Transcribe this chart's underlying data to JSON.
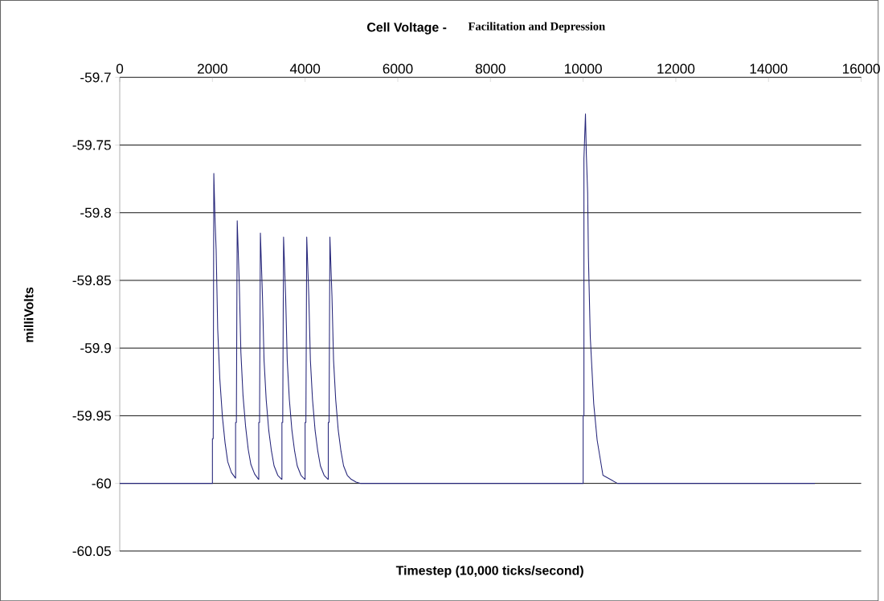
{
  "chart_data": {
    "type": "line",
    "title": "Cell Voltage -",
    "subtitle": "Facilitation and Depression",
    "xlabel": "Timestep (10,000 ticks/second)",
    "ylabel": "milliVolts",
    "xlim": [
      0,
      16000
    ],
    "xticks": [
      0,
      2000,
      4000,
      6000,
      8000,
      10000,
      12000,
      14000,
      16000
    ],
    "ylim": [
      -60.05,
      -59.7
    ],
    "yticks": [
      -60.05,
      -60,
      -59.95,
      -59.9,
      -59.85,
      -59.8,
      -59.75,
      -59.7
    ],
    "grid": "y",
    "marker": "none",
    "line_style": "solid",
    "series": [
      {
        "color": "#26267a",
        "x": [
          0,
          2000,
          2000,
          2017,
          2030,
          2057,
          2080,
          2114,
          2160,
          2216,
          2273,
          2330,
          2410,
          2495,
          2500,
          2500,
          2517,
          2535,
          2580,
          2614,
          2660,
          2716,
          2773,
          2830,
          2910,
          2995,
          3000,
          3000,
          3017,
          3035,
          3080,
          3114,
          3160,
          3216,
          3273,
          3330,
          3410,
          3495,
          3500,
          3500,
          3517,
          3535,
          3580,
          3614,
          3660,
          3716,
          3773,
          3830,
          3910,
          3995,
          4000,
          4000,
          4017,
          4035,
          4080,
          4114,
          4160,
          4216,
          4273,
          4330,
          4410,
          4495,
          4500,
          4500,
          4517,
          4535,
          4580,
          4614,
          4660,
          4716,
          4773,
          4830,
          4910,
          4995,
          5100,
          5200,
          10000,
          10000,
          10017,
          10017,
          10050,
          10068,
          10097,
          10114,
          10154,
          10228,
          10302,
          10427,
          10740,
          15000
        ],
        "values": [
          -60,
          -60,
          -59.967,
          -59.967,
          -59.771,
          -59.806,
          -59.827,
          -59.886,
          -59.923,
          -59.951,
          -59.97,
          -59.984,
          -59.992,
          -59.996,
          -59.996,
          -59.955,
          -59.955,
          -59.806,
          -59.853,
          -59.903,
          -59.935,
          -59.958,
          -59.975,
          -59.986,
          -59.993,
          -59.997,
          -59.997,
          -59.955,
          -59.955,
          -59.815,
          -59.862,
          -59.909,
          -59.938,
          -59.961,
          -59.976,
          -59.987,
          -59.994,
          -59.997,
          -59.997,
          -59.955,
          -59.955,
          -59.818,
          -59.862,
          -59.909,
          -59.938,
          -59.961,
          -59.976,
          -59.987,
          -59.994,
          -59.997,
          -59.997,
          -59.955,
          -59.955,
          -59.818,
          -59.862,
          -59.909,
          -59.938,
          -59.961,
          -59.976,
          -59.987,
          -59.994,
          -59.997,
          -59.997,
          -59.955,
          -59.955,
          -59.818,
          -59.862,
          -59.909,
          -59.938,
          -59.961,
          -59.976,
          -59.987,
          -59.994,
          -59.997,
          -59.999,
          -60,
          -60,
          -59.95,
          -59.95,
          -59.76,
          -59.727,
          -59.756,
          -59.785,
          -59.833,
          -59.892,
          -59.941,
          -59.968,
          -59.994,
          -60,
          -60
        ]
      }
    ]
  }
}
